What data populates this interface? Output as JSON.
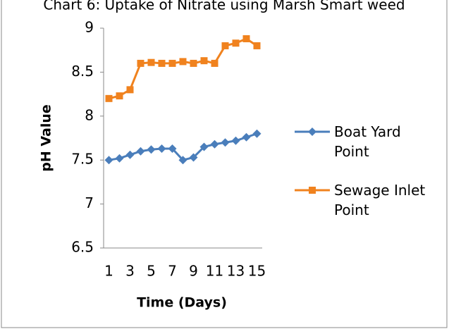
{
  "chart_data": {
    "type": "line",
    "title": "Chart 6: Uptake of Nitrate using Marsh Smart weed",
    "x_label": "Time (Days)",
    "y_label": "pH Value",
    "categories": [
      "1",
      null,
      "3",
      null,
      "5",
      null,
      "7",
      null,
      "9",
      null,
      "11",
      null,
      "13",
      null,
      "15"
    ],
    "series": [
      {
        "name": "Boat Yard Point",
        "color": "#4a7ebb",
        "marker": "diamond",
        "values": [
          7.5,
          7.52,
          7.56,
          7.6,
          7.62,
          7.63,
          7.63,
          7.5,
          7.53,
          7.65,
          7.68,
          7.7,
          7.72,
          7.76,
          7.8
        ]
      },
      {
        "name": "Sewage Inlet Point",
        "color": "#f0821e",
        "marker": "square",
        "values": [
          8.2,
          8.23,
          8.3,
          8.6,
          8.61,
          8.6,
          8.6,
          8.62,
          8.6,
          8.63,
          8.6,
          8.8,
          8.83,
          8.88,
          8.8
        ]
      }
    ],
    "ylim": [
      6.5,
      9
    ],
    "yticks": [
      6.5,
      7,
      7.5,
      8,
      8.5,
      9
    ],
    "legend": "right",
    "grid": false
  }
}
